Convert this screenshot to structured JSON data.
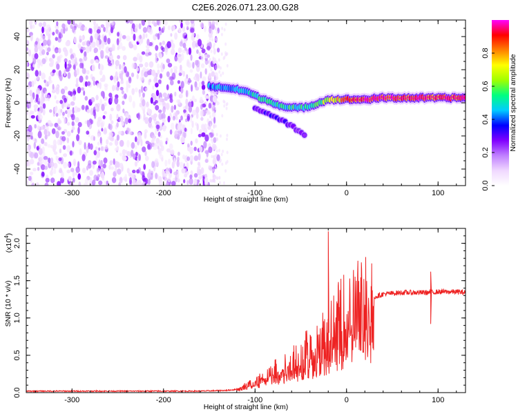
{
  "figure": {
    "title": "C2E6.2026.071.23.00.G28"
  },
  "chart_data": [
    {
      "type": "heatmap",
      "xlabel": "Height of straight line (km)",
      "ylabel": "Frequency (Hz)",
      "xlim": [
        -350,
        130
      ],
      "ylim": [
        -50,
        50
      ],
      "x_ticks": [
        -300,
        -200,
        -100,
        0,
        100
      ],
      "y_ticks": [
        -40,
        -20,
        0,
        20,
        40
      ],
      "colorbar": {
        "label": "Normalized spectral amplitude",
        "range": [
          0,
          1
        ],
        "ticks": [
          "0.0",
          "0.2",
          "0.4",
          "0.6",
          "0.8"
        ],
        "colormap": [
          "#ffffff",
          "#f0d8ff",
          "#c080ff",
          "#8000ff",
          "#0000ff",
          "#00ccff",
          "#00ff80",
          "#a0ff00",
          "#ffff00",
          "#ff8000",
          "#ff0000",
          "#ff00ff"
        ]
      },
      "noise_region": {
        "x_range": [
          -350,
          -140
        ],
        "y_range": [
          -50,
          50
        ]
      },
      "signal_track": [
        {
          "x": -150,
          "f": 10,
          "amp": 0.45
        },
        {
          "x": -130,
          "f": 9,
          "amp": 0.5
        },
        {
          "x": -110,
          "f": 7,
          "amp": 0.5
        },
        {
          "x": -95,
          "f": 3,
          "amp": 0.55
        },
        {
          "x": -80,
          "f": 0,
          "amp": 0.55
        },
        {
          "x": -65,
          "f": -3,
          "amp": 0.55
        },
        {
          "x": -50,
          "f": -3,
          "amp": 0.55
        },
        {
          "x": -40,
          "f": -2,
          "amp": 0.5
        },
        {
          "x": -30,
          "f": 0,
          "amp": 0.6
        },
        {
          "x": -20,
          "f": 2,
          "amp": 0.7
        },
        {
          "x": -10,
          "f": 2,
          "amp": 0.8
        },
        {
          "x": 0,
          "f": 2,
          "amp": 0.9
        },
        {
          "x": 20,
          "f": 2,
          "amp": 0.95
        },
        {
          "x": 40,
          "f": 3,
          "amp": 0.95
        },
        {
          "x": 60,
          "f": 3,
          "amp": 0.95
        },
        {
          "x": 80,
          "f": 3,
          "amp": 0.95
        },
        {
          "x": 100,
          "f": 3,
          "amp": 0.95
        },
        {
          "x": 130,
          "f": 3,
          "amp": 0.95
        }
      ],
      "branch_track": [
        {
          "x": -100,
          "f": -3,
          "amp": 0.3
        },
        {
          "x": -80,
          "f": -8,
          "amp": 0.35
        },
        {
          "x": -60,
          "f": -14,
          "amp": 0.3
        },
        {
          "x": -45,
          "f": -20,
          "amp": 0.25
        }
      ]
    },
    {
      "type": "line",
      "xlabel": "Height of straight line (km)",
      "ylabel": "SNR (10 * v/v)",
      "scale_label": "(x10",
      "scale_exponent": "4",
      "xlim": [
        -350,
        130
      ],
      "ylim": [
        0,
        2.2
      ],
      "x_ticks": [
        -300,
        -200,
        -100,
        0,
        100
      ],
      "y_ticks": [
        "0.0",
        "0.5",
        "1.0",
        "1.5",
        "2.0"
      ],
      "color": "#ee2222",
      "series": [
        {
          "x": [
            -350,
            -300,
            -250,
            -200,
            -160,
            -130,
            -115,
            -110,
            -100,
            -90,
            -80,
            -70,
            -60,
            -50,
            -40,
            -30,
            -25,
            -20,
            -15,
            -10,
            0,
            10,
            20,
            30,
            40,
            50,
            60,
            70,
            80,
            90,
            100,
            110,
            120,
            130
          ],
          "values": [
            0.02,
            0.02,
            0.02,
            0.02,
            0.02,
            0.03,
            0.05,
            0.1,
            0.15,
            0.22,
            0.28,
            0.35,
            0.42,
            0.5,
            0.58,
            0.68,
            0.75,
            0.8,
            0.85,
            0.95,
            1.05,
            1.15,
            1.22,
            1.28,
            1.32,
            1.33,
            1.34,
            1.34,
            1.34,
            1.34,
            1.35,
            1.35,
            1.35,
            1.34
          ],
          "spikes": [
            {
              "x": -20,
              "y": 2.16
            },
            {
              "x": 92,
              "y": 1.62
            },
            {
              "x": 92,
              "y": 0.92
            }
          ]
        }
      ]
    }
  ]
}
